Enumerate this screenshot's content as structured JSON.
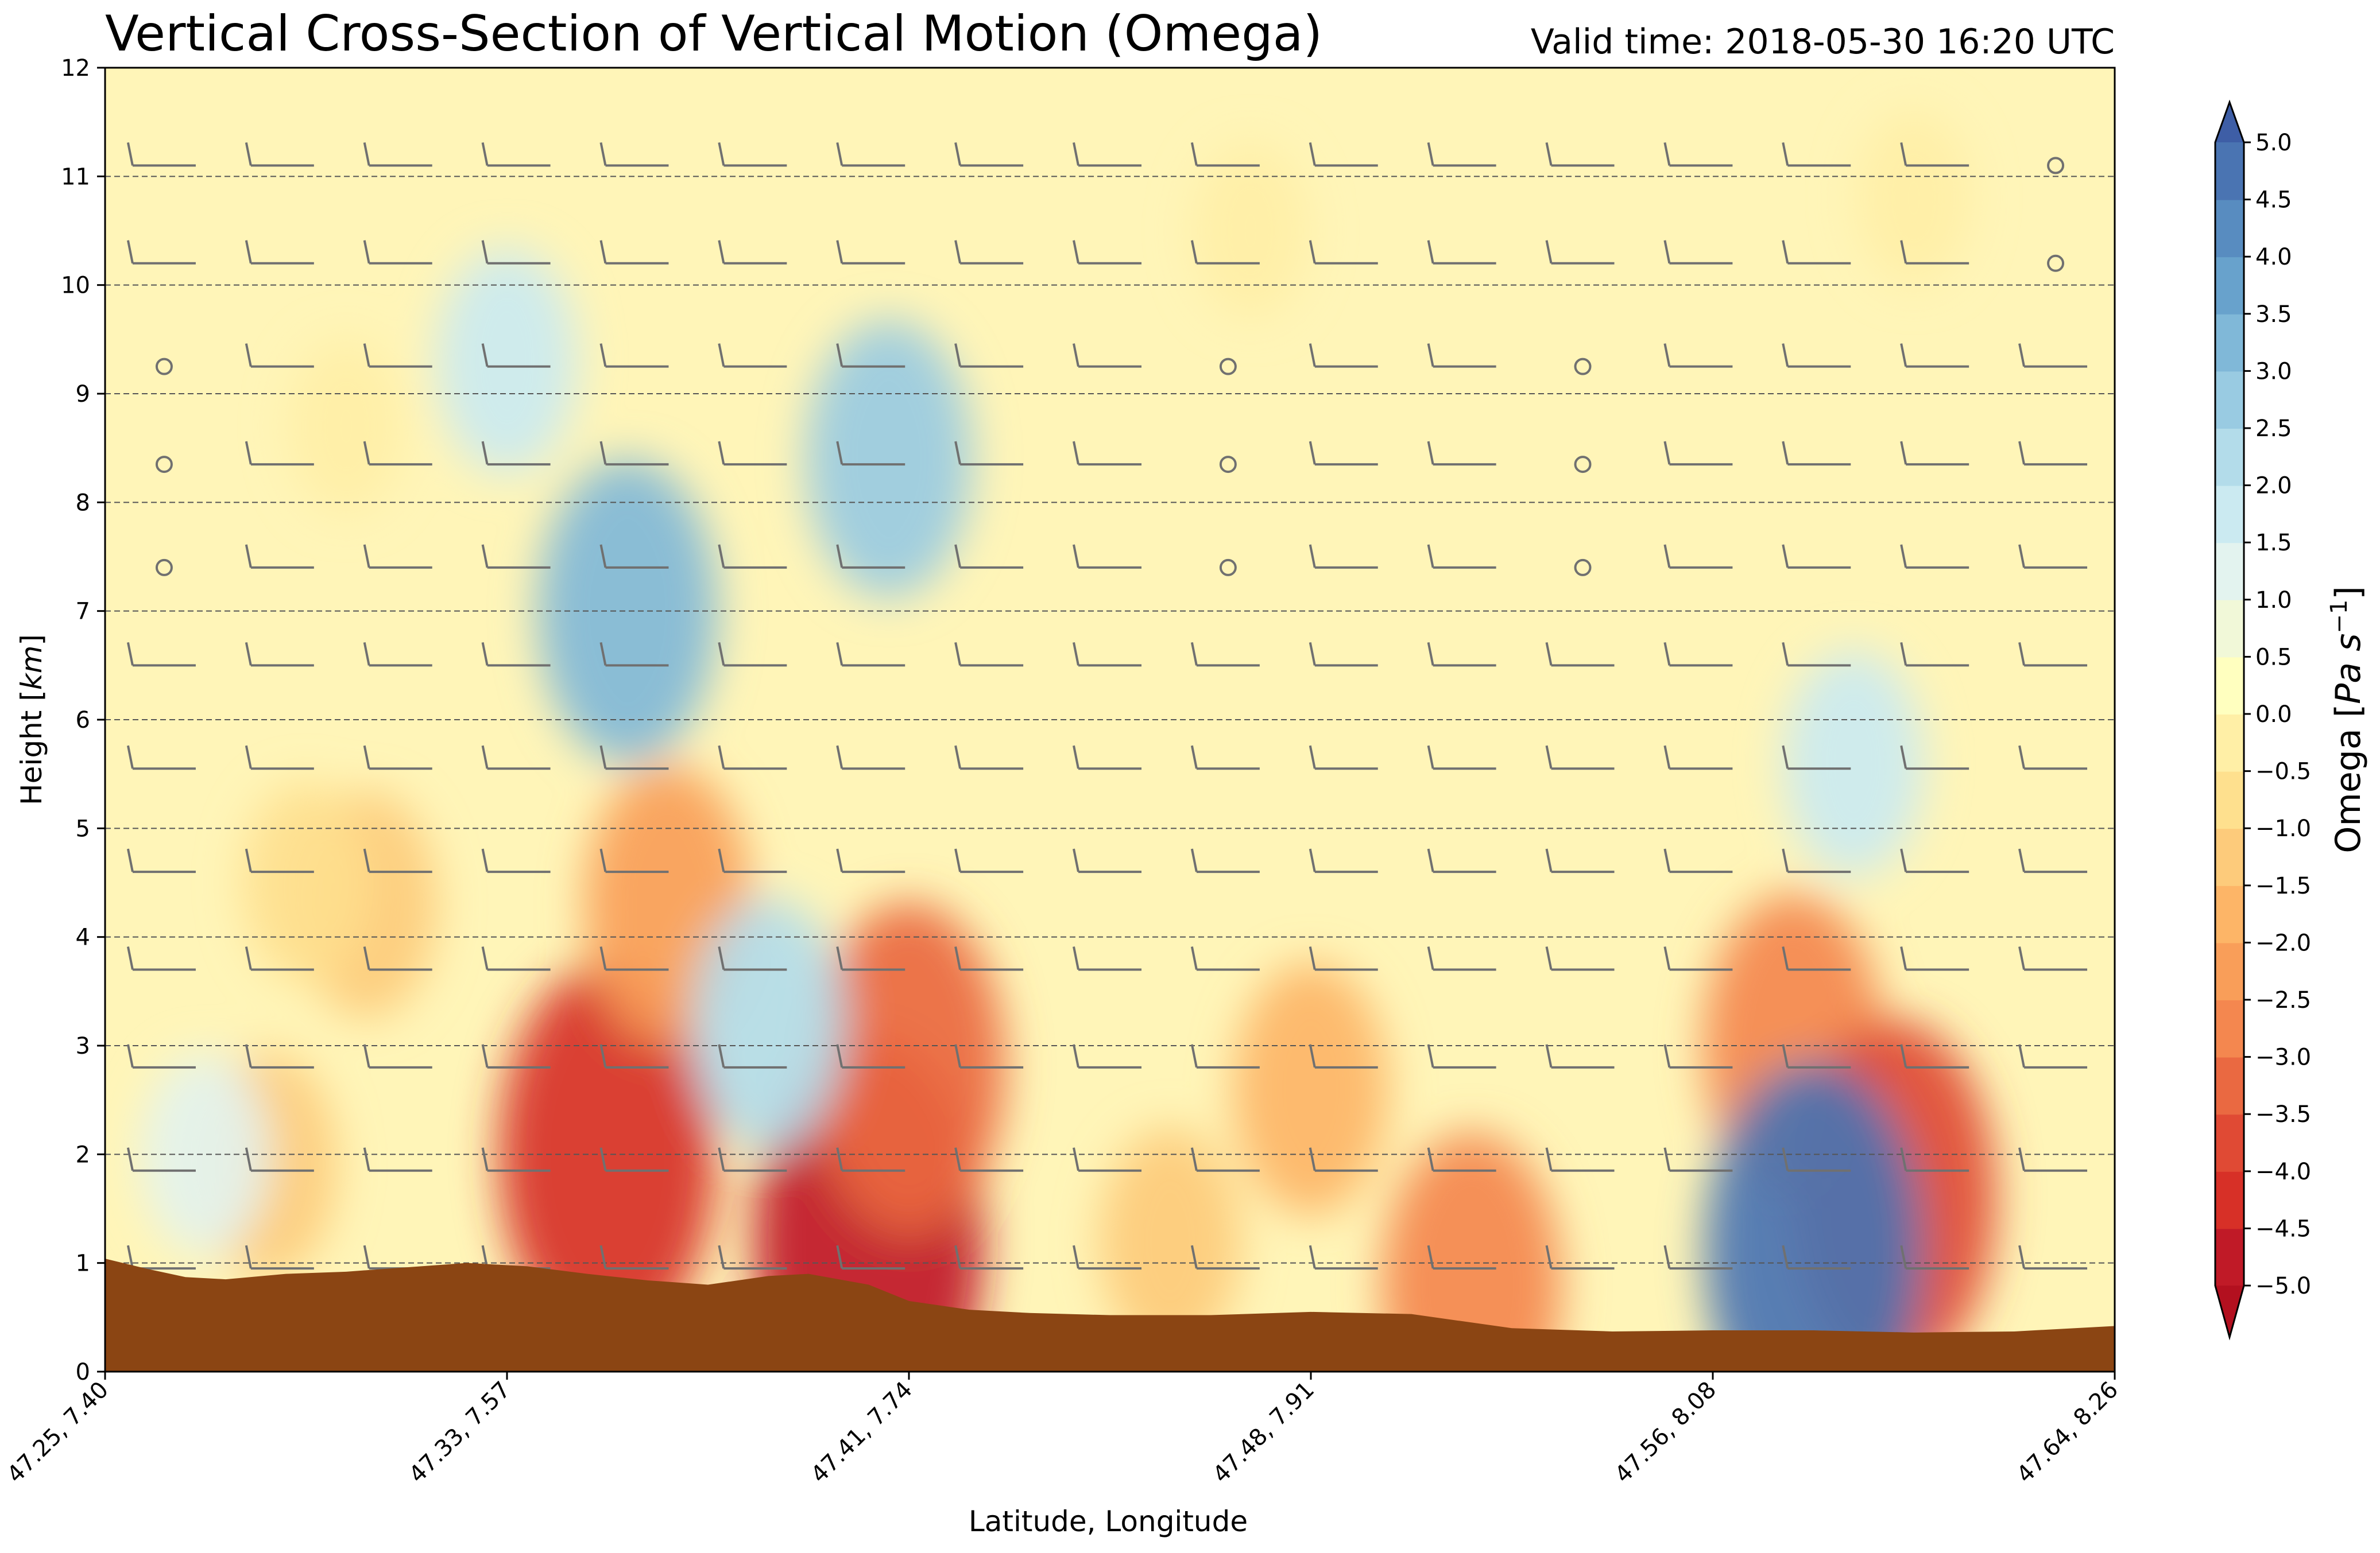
{
  "chart_data": {
    "type": "heatmap",
    "title": "Vertical Cross-Section of Vertical Motion (Omega)",
    "valid_time": "Valid time: 2018-05-30 16:20 UTC",
    "xlabel": "Latitude, Longitude",
    "ylabel": "Height [km]",
    "ylabel_text": "Height [",
    "ylabel_unit": "km",
    "ylabel_close": "]",
    "ylim": [
      0,
      12
    ],
    "yticks": [
      "0",
      "1",
      "2",
      "3",
      "4",
      "5",
      "6",
      "7",
      "8",
      "9",
      "10",
      "11",
      "12"
    ],
    "xticks": [
      "47.25, 7.40",
      "47.33, 7.57",
      "47.41, 7.74",
      "47.48, 7.91",
      "47.56, 8.08",
      "47.64, 8.26"
    ],
    "grid": "dashed horizontal at each km",
    "colorbar": {
      "label_main": "Omega [",
      "label_unit": "Pa s",
      "label_exp": "−1",
      "label_close": "]",
      "levels": [
        "−5.0",
        "−4.5",
        "−4.0",
        "−3.5",
        "−3.0",
        "−2.5",
        "−2.0",
        "−1.5",
        "−1.0",
        "−0.5",
        "0.0",
        "0.5",
        "1.0",
        "1.5",
        "2.0",
        "2.5",
        "3.0",
        "3.5",
        "4.0",
        "4.5",
        "5.0"
      ],
      "colors": [
        "#c01a27",
        "#d73027",
        "#e04a34",
        "#ea6941",
        "#f4874f",
        "#f99e59",
        "#fdb567",
        "#fdcb7b",
        "#fee08e",
        "#ffefa6",
        "#ffffbf",
        "#f1f8d8",
        "#e3f3ef",
        "#cbeaf1",
        "#b3dcea",
        "#99cbe2",
        "#80b8d8",
        "#68a2cc",
        "#588cc0",
        "#4a74b2"
      ]
    },
    "terrain_color": "#8b4513",
    "terrain_height_km": [
      [
        0.0,
        1.04
      ],
      [
        0.02,
        0.95
      ],
      [
        0.04,
        0.87
      ],
      [
        0.06,
        0.85
      ],
      [
        0.09,
        0.9
      ],
      [
        0.12,
        0.92
      ],
      [
        0.15,
        0.96
      ],
      [
        0.18,
        1.0
      ],
      [
        0.21,
        0.97
      ],
      [
        0.24,
        0.9
      ],
      [
        0.27,
        0.84
      ],
      [
        0.3,
        0.8
      ],
      [
        0.33,
        0.88
      ],
      [
        0.35,
        0.9
      ],
      [
        0.38,
        0.8
      ],
      [
        0.4,
        0.65
      ],
      [
        0.43,
        0.57
      ],
      [
        0.46,
        0.54
      ],
      [
        0.5,
        0.52
      ],
      [
        0.55,
        0.52
      ],
      [
        0.6,
        0.55
      ],
      [
        0.65,
        0.53
      ],
      [
        0.7,
        0.4
      ],
      [
        0.75,
        0.37
      ],
      [
        0.8,
        0.38
      ],
      [
        0.85,
        0.38
      ],
      [
        0.9,
        0.36
      ],
      [
        0.95,
        0.37
      ],
      [
        1.0,
        0.42
      ]
    ],
    "omega_cells": [
      {
        "x": 0.38,
        "y": 1.2,
        "value": -5.0
      },
      {
        "x": 0.4,
        "y": 2.8,
        "value": -3.5
      },
      {
        "x": 0.25,
        "y": 2.0,
        "value": -4.5
      },
      {
        "x": 0.28,
        "y": 4.3,
        "value": -2.5
      },
      {
        "x": 0.13,
        "y": 4.3,
        "value": -1.5
      },
      {
        "x": 0.08,
        "y": 1.9,
        "value": -1.5
      },
      {
        "x": 0.53,
        "y": 1.2,
        "value": -1.5
      },
      {
        "x": 0.6,
        "y": 2.6,
        "value": -2.0
      },
      {
        "x": 0.68,
        "y": 0.8,
        "value": -3.0
      },
      {
        "x": 0.84,
        "y": 3.0,
        "value": -3.0
      },
      {
        "x": 0.89,
        "y": 1.6,
        "value": -4.0
      },
      {
        "x": 0.85,
        "y": 1.1,
        "value": 4.5
      },
      {
        "x": 0.33,
        "y": 3.2,
        "value": 2.0
      },
      {
        "x": 0.26,
        "y": 7.0,
        "value": 3.0
      },
      {
        "x": 0.39,
        "y": 8.4,
        "value": 2.5
      },
      {
        "x": 0.2,
        "y": 9.3,
        "value": 1.5
      },
      {
        "x": 0.87,
        "y": 5.6,
        "value": 1.5
      },
      {
        "x": 0.1,
        "y": 4.5,
        "value": -1.0
      },
      {
        "x": 0.05,
        "y": 2.0,
        "value": 1.0
      },
      {
        "x": 0.57,
        "y": 10.5,
        "value": -0.5
      },
      {
        "x": 0.9,
        "y": 10.8,
        "value": -0.5
      },
      {
        "x": 0.12,
        "y": 8.7,
        "value": -0.5
      }
    ],
    "wind_barbs": {
      "color": "#707070",
      "levels_km": [
        0.95,
        1.85,
        2.8,
        3.7,
        4.6,
        5.55,
        6.5,
        7.4,
        8.35,
        9.25,
        10.2,
        11.1
      ],
      "columns": 17
    }
  }
}
